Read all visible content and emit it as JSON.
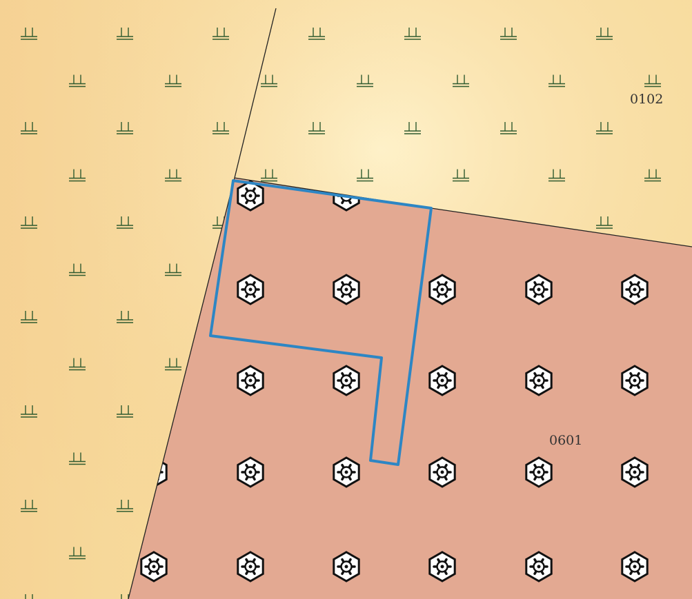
{
  "map": {
    "colors": {
      "farmland_fill": "#f8dfa0",
      "industrial_fill": "#e3a992",
      "boundary_line": "#222222",
      "highlight_outline": "#2d86c4",
      "farmland_symbol": "#2f5a2f"
    },
    "parcels": [
      {
        "code": "0102",
        "land_use": "farmland",
        "symbol": "farmland-symbol"
      },
      {
        "code": "0601",
        "land_use": "industrial",
        "symbol": "industrial-symbol"
      }
    ],
    "highlighted_area": {
      "outline_color": "#2d86c4"
    }
  }
}
